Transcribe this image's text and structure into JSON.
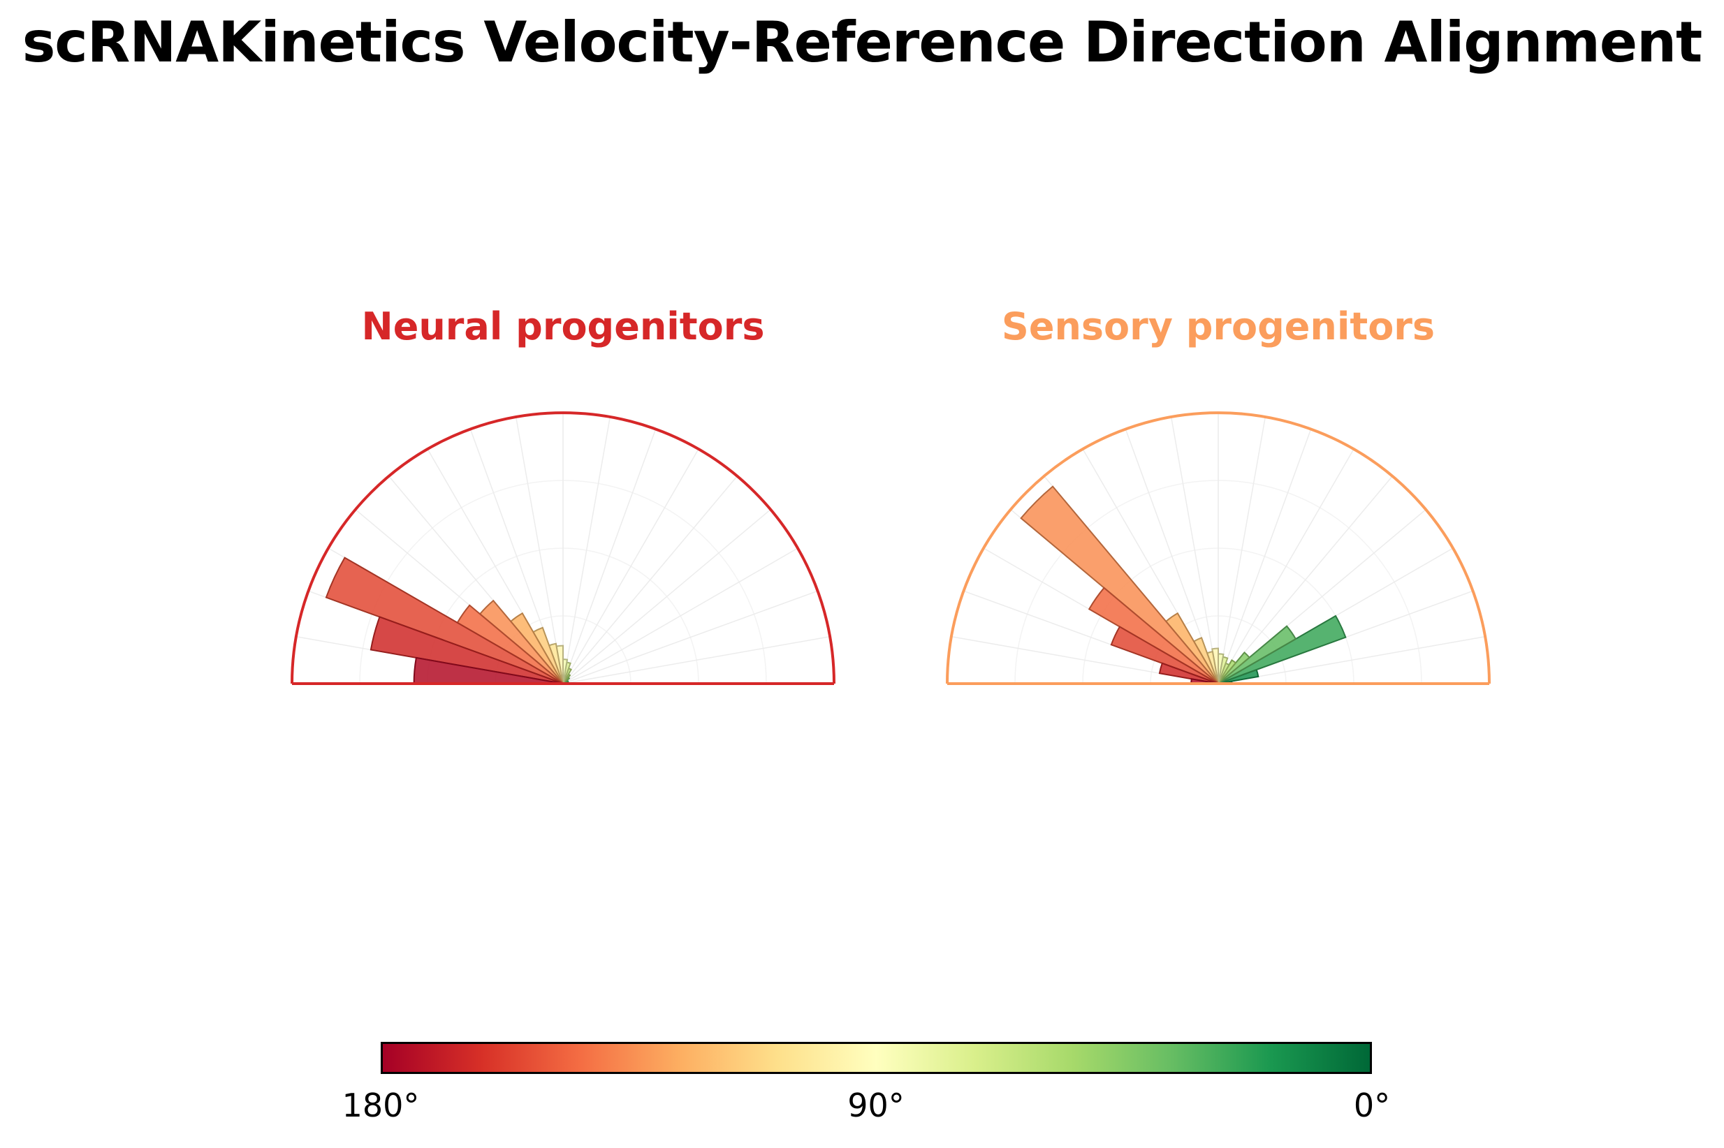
{
  "page": {
    "title": "scRNAKinetics Velocity-Reference Direction Alignment",
    "background_color": "#ffffff"
  },
  "colorbar": {
    "labels": [
      "180°",
      "90°",
      "0°"
    ],
    "border_color": "#000000",
    "orientation": "horizontal",
    "stops": [
      [
        0.0,
        "#a50026"
      ],
      [
        0.1,
        "#d73027"
      ],
      [
        0.2,
        "#f46d43"
      ],
      [
        0.3,
        "#fdae61"
      ],
      [
        0.4,
        "#fee08b"
      ],
      [
        0.5,
        "#ffffbf"
      ],
      [
        0.6,
        "#d9ef8b"
      ],
      [
        0.7,
        "#a6d96a"
      ],
      [
        0.8,
        "#66bd63"
      ],
      [
        0.9,
        "#1a9850"
      ],
      [
        1.0,
        "#006837"
      ]
    ]
  },
  "chart_data": [
    {
      "type": "polar_histogram",
      "title": "Neural progenitors",
      "accent_color": "#d62728",
      "theta_min_deg": 0,
      "theta_max_deg": 180,
      "bin_width_deg": 10,
      "bin_centers_deg": [
        5,
        15,
        25,
        35,
        45,
        55,
        65,
        75,
        85,
        95,
        105,
        115,
        125,
        135,
        145,
        155,
        165,
        175
      ],
      "values_fraction_of_rmax": [
        0.0,
        0.0,
        0.02,
        0.02,
        0.03,
        0.04,
        0.06,
        0.08,
        0.09,
        0.14,
        0.15,
        0.22,
        0.3,
        0.4,
        0.45,
        0.93,
        0.72,
        0.55
      ],
      "color_rule": "RdYlGn colormap keyed to angle: 180° = dark red, 90° = pale yellow, 0° = dark green",
      "rlim": [
        0,
        1
      ],
      "grid": true,
      "xlabel": "",
      "ylabel": ""
    },
    {
      "type": "polar_histogram",
      "title": "Sensory progenitors",
      "accent_color": "#fb9d5c",
      "theta_min_deg": 0,
      "theta_max_deg": 180,
      "bin_width_deg": 10,
      "bin_centers_deg": [
        5,
        15,
        25,
        35,
        45,
        55,
        65,
        75,
        85,
        95,
        105,
        115,
        125,
        135,
        145,
        155,
        165,
        175
      ],
      "values_fraction_of_rmax": [
        0.05,
        0.15,
        0.5,
        0.33,
        0.15,
        0.1,
        0.08,
        0.1,
        0.11,
        0.13,
        0.12,
        0.18,
        0.3,
        0.95,
        0.55,
        0.42,
        0.22,
        0.1
      ],
      "color_rule": "RdYlGn colormap keyed to angle: 180° = dark red, 90° = pale yellow, 0° = dark green",
      "rlim": [
        0,
        1
      ],
      "grid": true,
      "xlabel": "",
      "ylabel": ""
    }
  ]
}
